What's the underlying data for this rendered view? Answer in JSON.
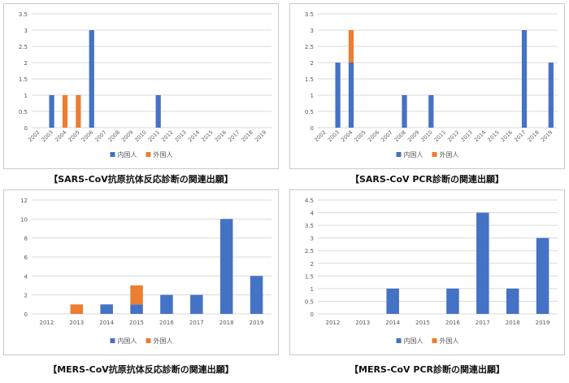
{
  "chart_data": [
    {
      "type": "bar",
      "stacked": true,
      "caption": "【SARS-CoV抗原抗体反応診断の関連出願】",
      "categories": [
        "2002",
        "2003",
        "2004",
        "2005",
        "2006",
        "2007",
        "2008",
        "2009",
        "2010",
        "2011",
        "2012",
        "2013",
        "2014",
        "2015",
        "2016",
        "2017",
        "2018",
        "2019"
      ],
      "series": [
        {
          "name": "内国人",
          "color": "#4472c4",
          "values": [
            0,
            1,
            0,
            0,
            3,
            0,
            0,
            0,
            0,
            1,
            0,
            0,
            0,
            0,
            0,
            0,
            0,
            0
          ]
        },
        {
          "name": "外国人",
          "color": "#ed7d31",
          "values": [
            0,
            0,
            1,
            1,
            0,
            0,
            0,
            0,
            0,
            0,
            0,
            0,
            0,
            0,
            0,
            0,
            0,
            0
          ]
        }
      ],
      "ylim": [
        0,
        3.5
      ],
      "yticks": [
        "0",
        "0.5",
        "1",
        "1.5",
        "2",
        "2.5",
        "3",
        "3.5"
      ],
      "grid": true,
      "legend": "bottom",
      "rotate_x_labels": true
    },
    {
      "type": "bar",
      "stacked": true,
      "caption": "【SARS-CoV PCR診断の関連出願】",
      "categories": [
        "2002",
        "2003",
        "2004",
        "2005",
        "2006",
        "2007",
        "2008",
        "2009",
        "2010",
        "2011",
        "2012",
        "2013",
        "2014",
        "2015",
        "2016",
        "2017",
        "2018",
        "2019"
      ],
      "series": [
        {
          "name": "内国人",
          "color": "#4472c4",
          "values": [
            0,
            2,
            2,
            0,
            0,
            0,
            1,
            0,
            1,
            0,
            0,
            0,
            0,
            0,
            0,
            3,
            0,
            2
          ]
        },
        {
          "name": "外国人",
          "color": "#ed7d31",
          "values": [
            0,
            0,
            1,
            0,
            0,
            0,
            0,
            0,
            0,
            0,
            0,
            0,
            0,
            0,
            0,
            0,
            0,
            0
          ]
        }
      ],
      "ylim": [
        0,
        3.5
      ],
      "yticks": [
        "0",
        "0.5",
        "1",
        "1.5",
        "2",
        "2.5",
        "3",
        "3.5"
      ],
      "grid": true,
      "legend": "bottom",
      "rotate_x_labels": true
    },
    {
      "type": "bar",
      "stacked": true,
      "caption": "【MERS-CoV抗原抗体反応診断の関連出願】",
      "categories": [
        "2012",
        "2013",
        "2014",
        "2015",
        "2016",
        "2017",
        "2018",
        "2019"
      ],
      "series": [
        {
          "name": "内国人",
          "color": "#4472c4",
          "values": [
            0,
            0,
            1,
            1,
            2,
            2,
            10,
            4
          ]
        },
        {
          "name": "外国人",
          "color": "#ed7d31",
          "values": [
            0,
            1,
            0,
            2,
            0,
            0,
            0,
            0
          ]
        }
      ],
      "ylim": [
        0,
        12
      ],
      "yticks": [
        "0",
        "2",
        "4",
        "6",
        "8",
        "10",
        "12"
      ],
      "grid": true,
      "legend": "bottom",
      "rotate_x_labels": false
    },
    {
      "type": "bar",
      "stacked": true,
      "caption": "【MERS-CoV PCR診断の関連出願】",
      "categories": [
        "2012",
        "2013",
        "2014",
        "2015",
        "2016",
        "2017",
        "2018",
        "2019"
      ],
      "series": [
        {
          "name": "内国人",
          "color": "#4472c4",
          "values": [
            0,
            0,
            1,
            0,
            1,
            4,
            1,
            3
          ]
        },
        {
          "name": "外国人",
          "color": "#ed7d31",
          "values": [
            0,
            0,
            0,
            0,
            0,
            0,
            0,
            0
          ]
        }
      ],
      "ylim": [
        0,
        4.5
      ],
      "yticks": [
        "0",
        "0.5",
        "1",
        "1.5",
        "2",
        "2.5",
        "3",
        "3.5",
        "4",
        "4.5"
      ],
      "grid": true,
      "legend": "bottom",
      "rotate_x_labels": false
    }
  ]
}
